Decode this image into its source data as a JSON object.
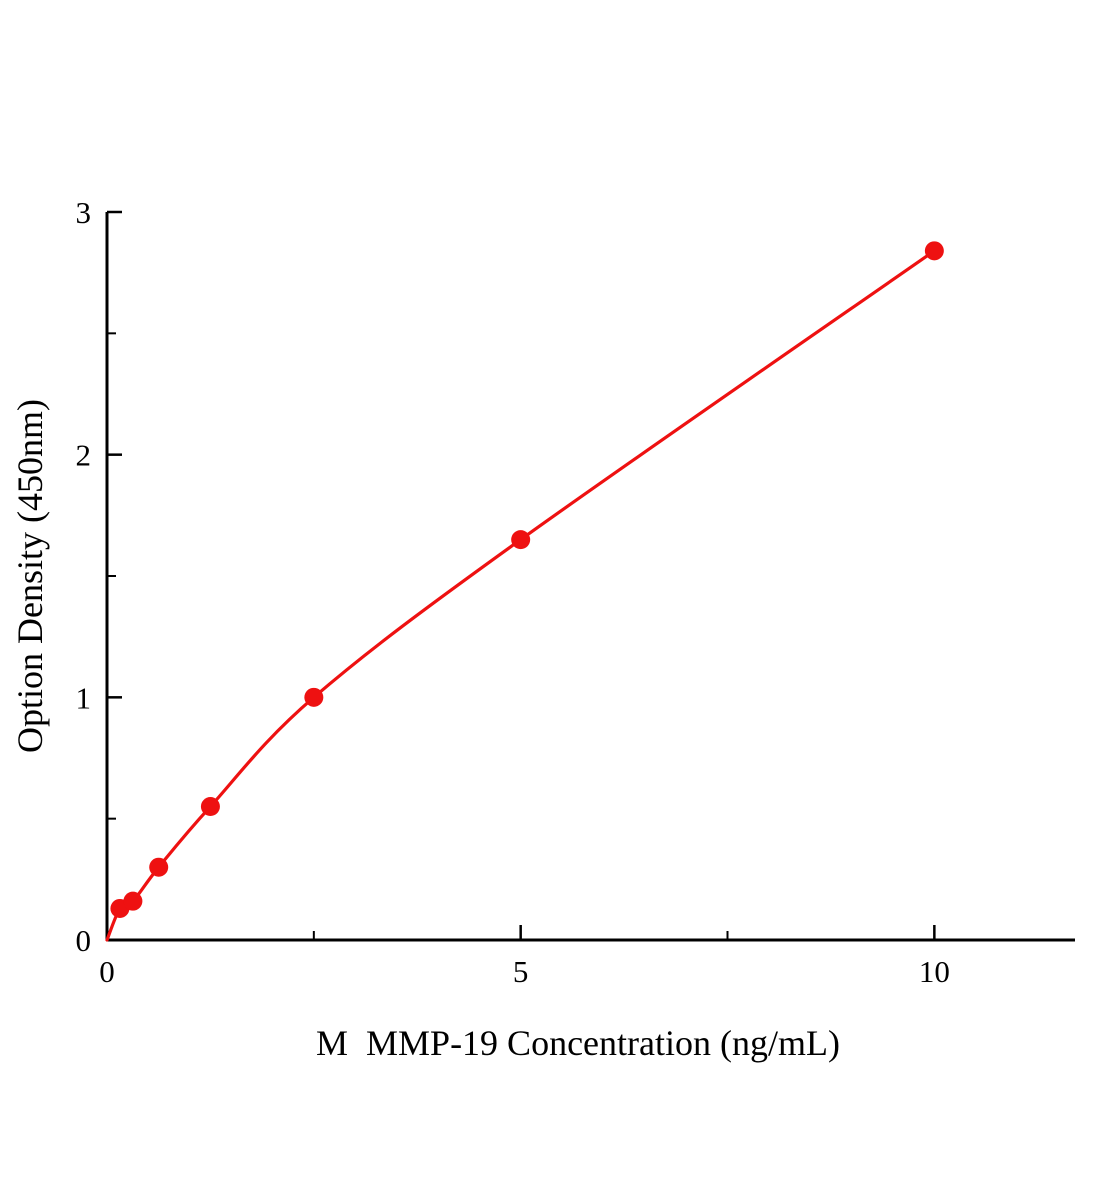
{
  "chart_data": {
    "type": "line",
    "title": "",
    "xlabel": "M  MMP-19 Concentration (ng/mL)",
    "ylabel": "Option Density (450nm)",
    "x": [
      0.156,
      0.313,
      0.625,
      1.25,
      2.5,
      5,
      10
    ],
    "y": [
      0.13,
      0.16,
      0.3,
      0.55,
      1.0,
      1.65,
      2.84
    ],
    "curve_origin": [
      0,
      0
    ],
    "xlim": [
      0,
      11.7
    ],
    "ylim": [
      0,
      3
    ],
    "x_major_ticks": [
      0,
      5,
      10
    ],
    "x_minor_ticks": [
      2.5,
      7.5
    ],
    "y_major_ticks": [
      0,
      1,
      2,
      3
    ],
    "y_minor_ticks": [
      0.5,
      1.5,
      2.5
    ],
    "x_tick_labels": [
      "0",
      "5",
      "10"
    ],
    "y_tick_labels": [
      "0",
      "1",
      "2",
      "3"
    ],
    "grid": "off",
    "legend": "none",
    "line_color": "#ee1111",
    "marker_color": "#ee1111",
    "axis_color": "#000000"
  }
}
